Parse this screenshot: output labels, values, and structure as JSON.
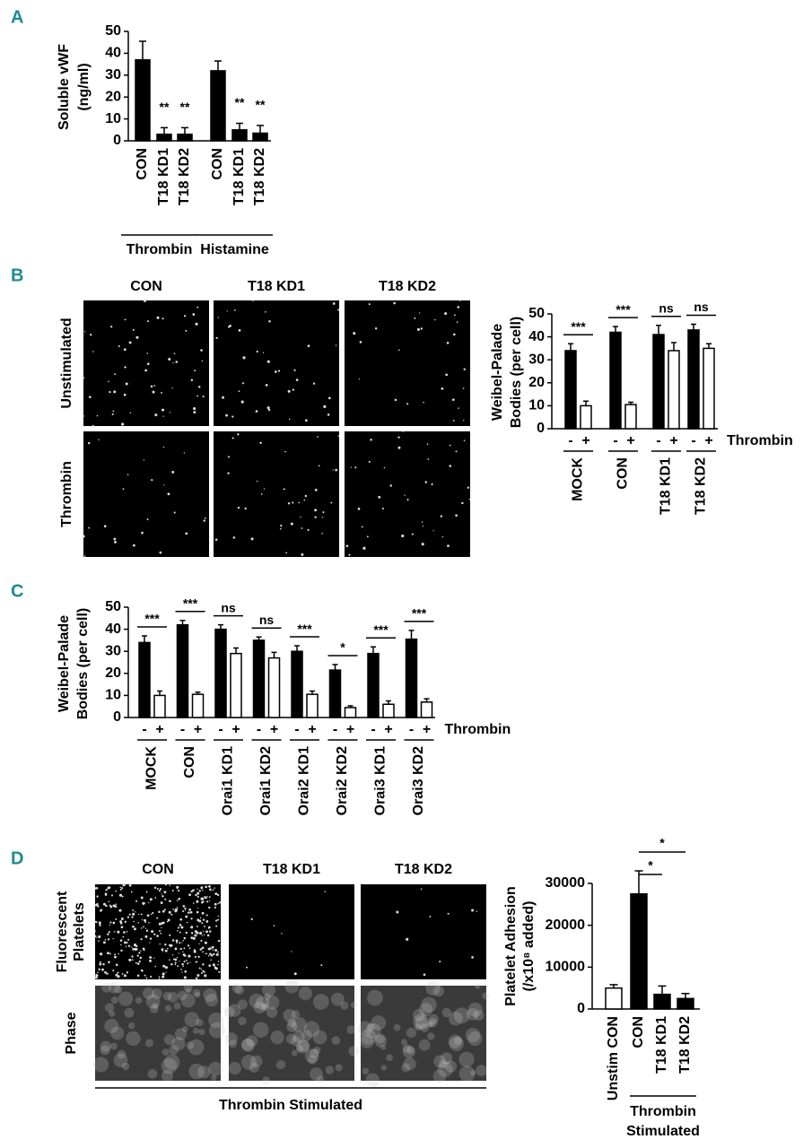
{
  "panel_labels": [
    "A",
    "B",
    "C",
    "D"
  ],
  "image_panels": [
    {
      "columns": [
        "CON",
        "T18 KD1",
        "T18 KD2"
      ],
      "rows": [
        [
          "Unstimulated"
        ],
        [
          "Thrombin"
        ]
      ]
    },
    {
      "columns": [
        "CON",
        "T18 KD1",
        "T18 KD2"
      ],
      "rows": [
        [
          "Fluorescent",
          "Platelets"
        ],
        [
          "Phase"
        ]
      ],
      "caption": "Thrombin Stimulated"
    }
  ],
  "chart_data": [
    {
      "type": "bar",
      "ylabel": [
        "Soluble vWF",
        "(ng/ml)"
      ],
      "categories": [
        "CON",
        "T18 KD1",
        "T18 KD2",
        "CON",
        "T18 KD1",
        "T18 KD2"
      ],
      "values": [
        37,
        3,
        3,
        32,
        5,
        3.5
      ],
      "errors": [
        8.5,
        3,
        3,
        4.5,
        3,
        3.5
      ],
      "annotations": [
        null,
        "**",
        "**",
        null,
        "**",
        "**"
      ],
      "groups": [
        "Thrombin",
        "Histamine"
      ],
      "color": "#000000",
      "ylim": [
        0,
        50
      ],
      "yticks": [
        0,
        10,
        20,
        30,
        40,
        50
      ]
    },
    {
      "type": "bar",
      "ylabel": [
        "Weibel-Palade",
        "Bodies (per cell)"
      ],
      "categories": [
        "MOCK",
        "CON",
        "T18 KD1",
        "T18 KD2"
      ],
      "series": [
        {
          "name": "-",
          "color": "#000000",
          "values": [
            34,
            42,
            41,
            43
          ],
          "errors": [
            3,
            2.5,
            4,
            2.5
          ]
        },
        {
          "name": "+",
          "color": "#ffffff",
          "values": [
            10,
            10.5,
            34,
            35
          ],
          "errors": [
            2,
            1,
            3.5,
            2
          ]
        }
      ],
      "series_label": "Thrombin",
      "significance": [
        "***",
        "***",
        "ns",
        "ns"
      ],
      "ylim": [
        0,
        50
      ],
      "yticks": [
        0,
        10,
        20,
        30,
        40,
        50
      ]
    },
    {
      "type": "bar",
      "ylabel": [
        "Weibel-Palade",
        "Bodies (per cell)"
      ],
      "categories": [
        "MOCK",
        "CON",
        "Orai1 KD1",
        "Orai1 KD2",
        "Orai2 KD1",
        "Orai2 KD2",
        "Orai3 KD1",
        "Orai3 KD2"
      ],
      "series": [
        {
          "name": "-",
          "color": "#000000",
          "values": [
            34,
            42,
            40,
            35,
            30,
            21.5,
            29,
            35.5
          ],
          "errors": [
            3,
            2,
            2,
            1.5,
            2.5,
            2.5,
            3,
            4
          ]
        },
        {
          "name": "+",
          "color": "#ffffff",
          "values": [
            10,
            10.5,
            29,
            27,
            10.5,
            4.5,
            6,
            7
          ],
          "errors": [
            2,
            1,
            2.5,
            2.5,
            1.5,
            0.8,
            1.5,
            1.5
          ]
        }
      ],
      "series_label": "Thrombin",
      "significance": [
        "***",
        "***",
        "ns",
        "ns",
        "***",
        "*",
        "***",
        "***"
      ],
      "ylim": [
        0,
        50
      ],
      "yticks": [
        0,
        10,
        20,
        30,
        40,
        50
      ]
    },
    {
      "type": "bar",
      "ylabel": [
        "Platelet Adhesion",
        "(/x10⁸ added)"
      ],
      "categories": [
        "Unstim CON",
        "CON",
        "T18 KD1",
        "T18 KD2"
      ],
      "values": [
        5000,
        27500,
        3500,
        2500
      ],
      "errors": [
        800,
        5500,
        2000,
        1200
      ],
      "colors": [
        "#ffffff",
        "#000000",
        "#000000",
        "#000000"
      ],
      "group_label": [
        "Thrombin",
        "Stimulated"
      ],
      "comparisons": [
        "*",
        "*"
      ],
      "ylim": [
        0,
        30000
      ],
      "yticks": [
        0,
        10000,
        20000,
        30000
      ]
    }
  ]
}
